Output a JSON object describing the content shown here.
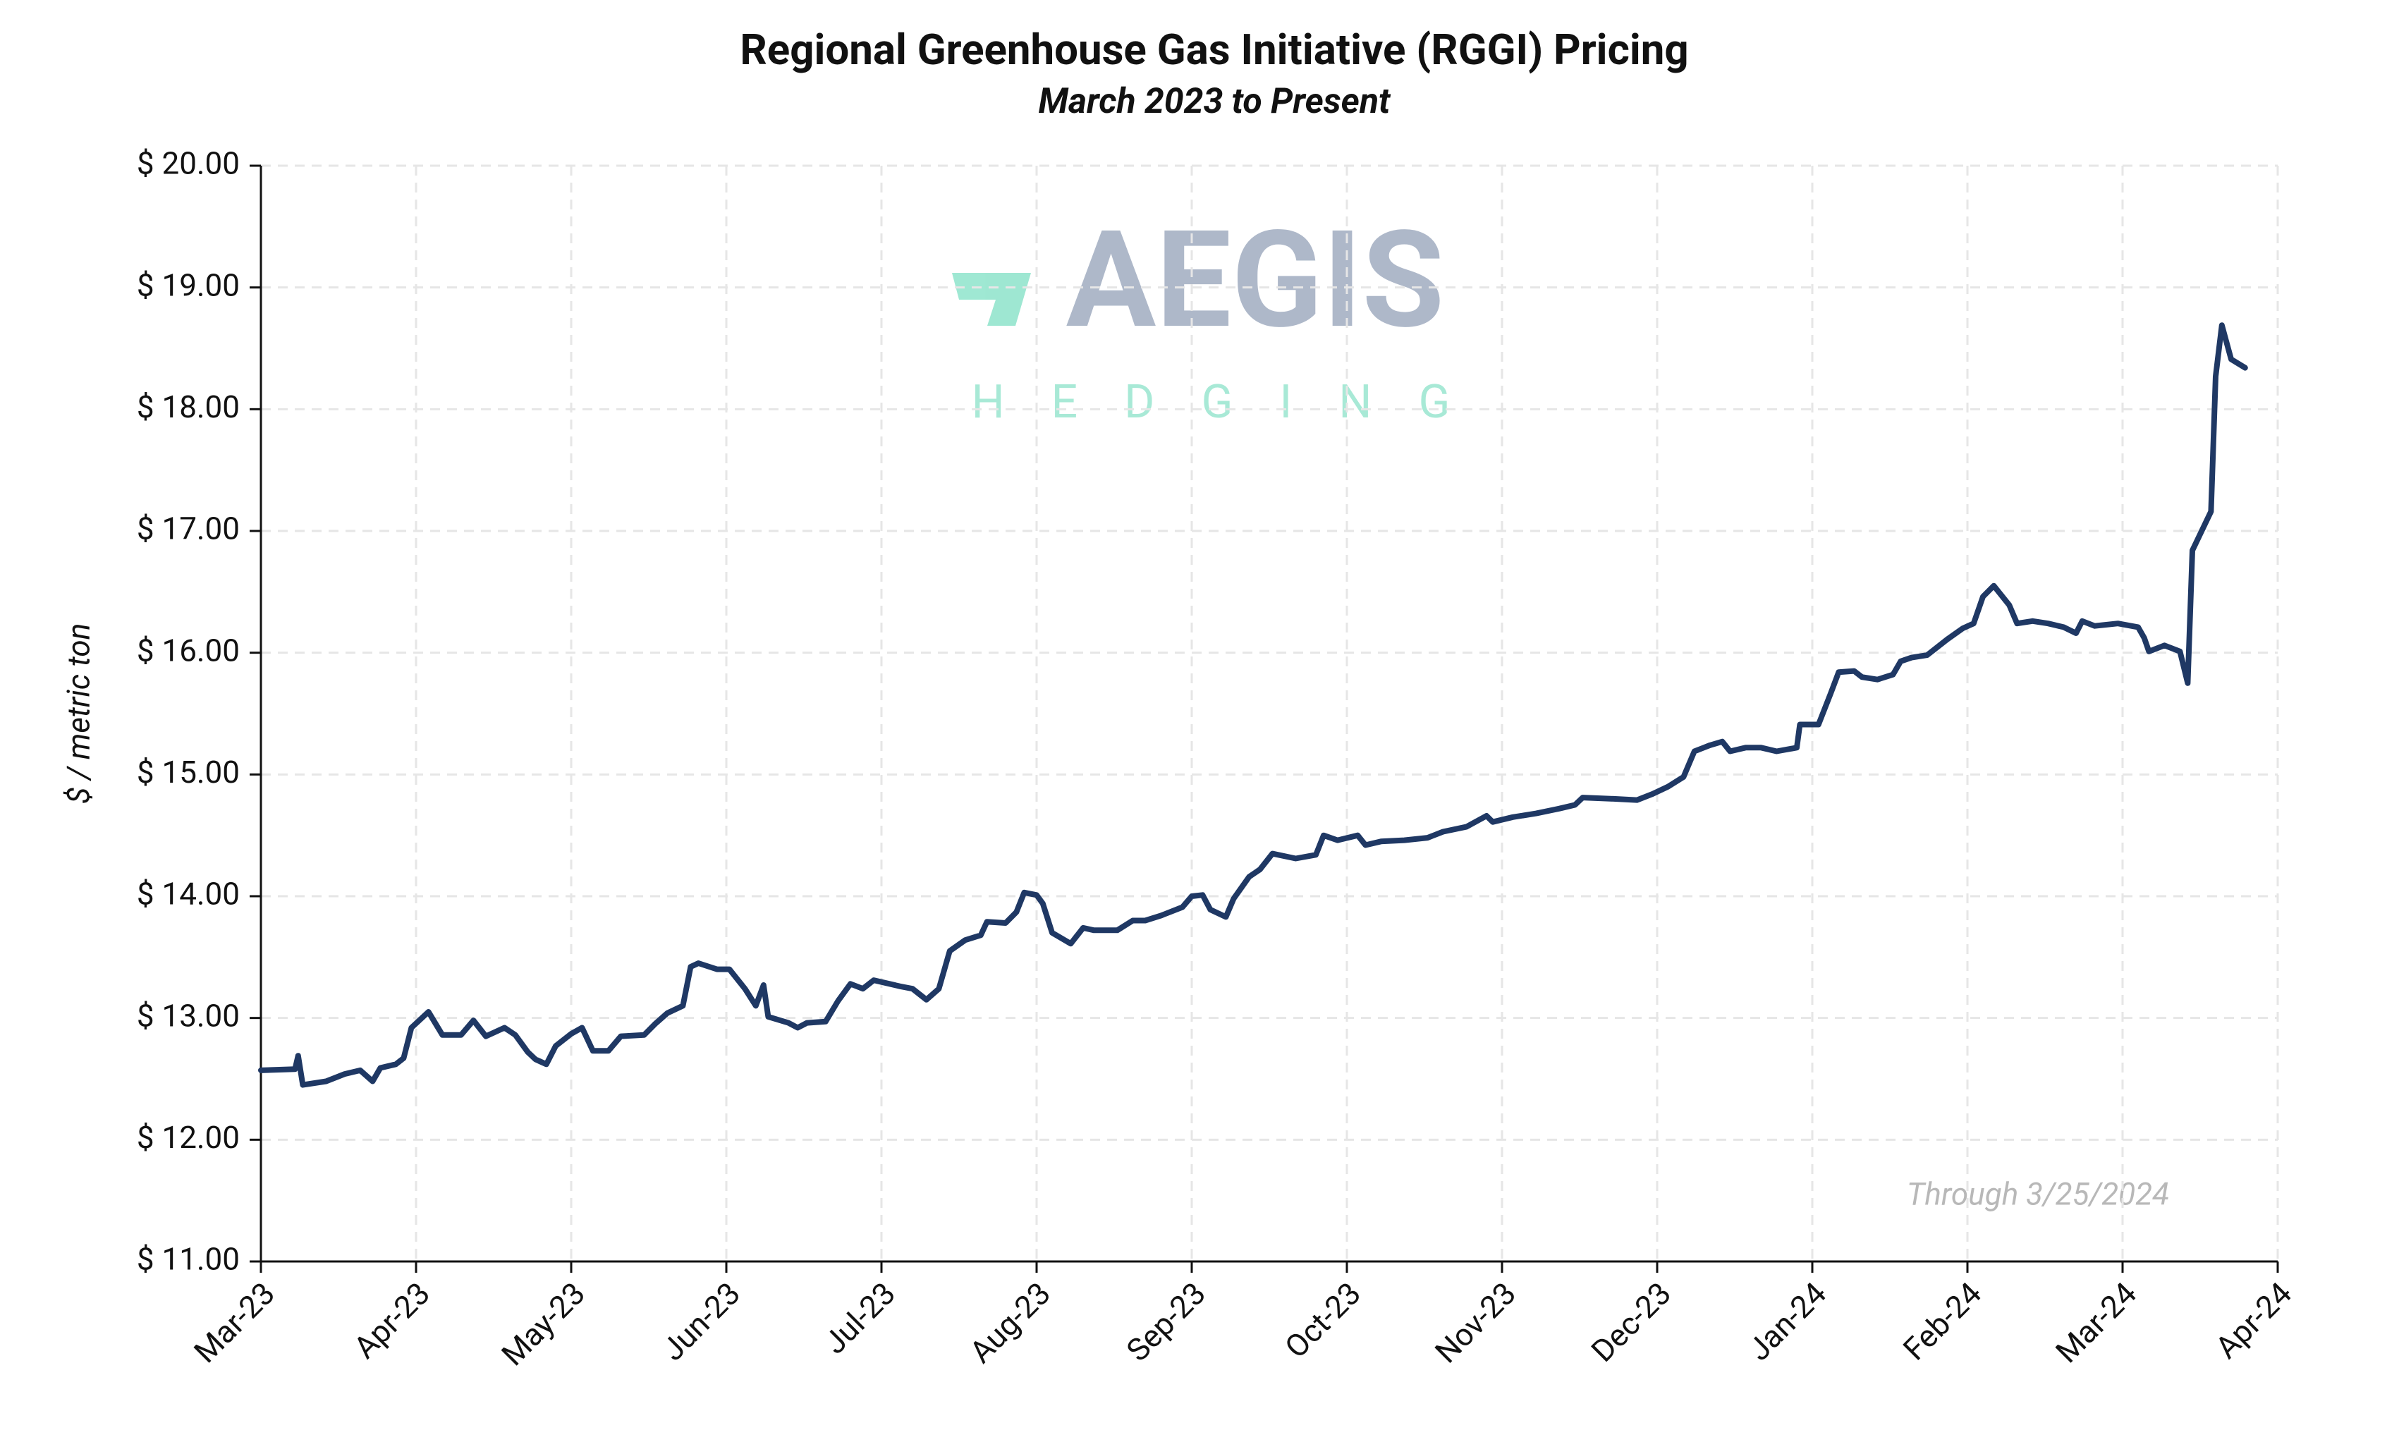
{
  "chart_data": {
    "type": "line",
    "title": "Regional Greenhouse Gas Initiative (RGGI) Pricing",
    "subtitle": "March 2023 to Present",
    "y_label": "$ / metric ton",
    "annotation": "Through 3/25/2024",
    "watermark": {
      "title": "AEGIS",
      "subtitle": "HEDGING"
    },
    "grid": true,
    "xlim": [
      0,
      13
    ],
    "xticks": [
      {
        "value": 0,
        "label": "Mar-23"
      },
      {
        "value": 1,
        "label": "Apr-23"
      },
      {
        "value": 2,
        "label": "May-23"
      },
      {
        "value": 3,
        "label": "Jun-23"
      },
      {
        "value": 4,
        "label": "Jul-23"
      },
      {
        "value": 5,
        "label": "Aug-23"
      },
      {
        "value": 6,
        "label": "Sep-23"
      },
      {
        "value": 7,
        "label": "Oct-23"
      },
      {
        "value": 8,
        "label": "Nov-23"
      },
      {
        "value": 9,
        "label": "Dec-23"
      },
      {
        "value": 10,
        "label": "Jan-24"
      },
      {
        "value": 11,
        "label": "Feb-24"
      },
      {
        "value": 12,
        "label": "Mar-24"
      },
      {
        "value": 13,
        "label": "Apr-24"
      }
    ],
    "ylim": [
      11,
      20
    ],
    "yticks": [
      {
        "value": 11,
        "label": "$ 11.00"
      },
      {
        "value": 12,
        "label": "$ 12.00"
      },
      {
        "value": 13,
        "label": "$ 13.00"
      },
      {
        "value": 14,
        "label": "$ 14.00"
      },
      {
        "value": 15,
        "label": "$ 15.00"
      },
      {
        "value": 16,
        "label": "$ 16.00"
      },
      {
        "value": 17,
        "label": "$ 17.00"
      },
      {
        "value": 18,
        "label": "$ 18.00"
      },
      {
        "value": 19,
        "label": "$ 19.00"
      },
      {
        "value": 20,
        "label": "$ 20.00"
      }
    ],
    "x": [
      0,
      0.22,
      0.24,
      0.27,
      0.42,
      0.54,
      0.64,
      0.72,
      0.77,
      0.87,
      0.92,
      0.97,
      1.08,
      1.17,
      1.29,
      1.37,
      1.45,
      1.57,
      1.64,
      1.72,
      1.77,
      1.84,
      1.9,
      2.0,
      2.07,
      2.14,
      2.24,
      2.32,
      2.47,
      2.54,
      2.62,
      2.72,
      2.77,
      2.82,
      2.94,
      3.02,
      3.12,
      3.19,
      3.24,
      3.27,
      3.4,
      3.46,
      3.52,
      3.64,
      3.72,
      3.8,
      3.88,
      3.95,
      4.12,
      4.2,
      4.29,
      4.37,
      4.44,
      4.54,
      4.64,
      4.68,
      4.8,
      4.87,
      4.92,
      5.0,
      5.04,
      5.1,
      5.22,
      5.3,
      5.37,
      5.52,
      5.62,
      5.7,
      5.8,
      5.94,
      6.0,
      6.07,
      6.12,
      6.22,
      6.27,
      6.37,
      6.44,
      6.52,
      6.67,
      6.8,
      6.85,
      6.94,
      7.07,
      7.12,
      7.22,
      7.37,
      7.52,
      7.62,
      7.77,
      7.9,
      7.94,
      8.07,
      8.22,
      8.37,
      8.47,
      8.52,
      8.72,
      8.87,
      8.97,
      9.07,
      9.17,
      9.24,
      9.34,
      9.42,
      9.47,
      9.57,
      9.67,
      9.77,
      9.9,
      9.92,
      10.04,
      10.12,
      10.17,
      10.27,
      10.32,
      10.42,
      10.52,
      10.57,
      10.64,
      10.74,
      10.87,
      10.97,
      11.04,
      11.1,
      11.17,
      11.27,
      11.32,
      11.42,
      11.52,
      11.62,
      11.7,
      11.74,
      11.82,
      11.97,
      12.1,
      12.14,
      12.17,
      12.27,
      12.37,
      12.42,
      12.45,
      12.57,
      12.6,
      12.64,
      12.7,
      12.79
    ],
    "series": [
      {
        "name": "RGGI",
        "color": "#1f3864",
        "values": [
          12.57,
          12.58,
          12.69,
          12.45,
          12.48,
          12.54,
          12.57,
          12.48,
          12.59,
          12.62,
          12.67,
          12.92,
          13.05,
          12.86,
          12.86,
          12.98,
          12.85,
          12.92,
          12.86,
          12.72,
          12.66,
          12.62,
          12.77,
          12.87,
          12.92,
          12.73,
          12.73,
          12.85,
          12.86,
          12.95,
          13.04,
          13.1,
          13.42,
          13.45,
          13.4,
          13.4,
          13.24,
          13.1,
          13.27,
          13.01,
          12.96,
          12.92,
          12.96,
          12.97,
          13.14,
          13.28,
          13.24,
          13.31,
          13.26,
          13.24,
          13.15,
          13.24,
          13.55,
          13.64,
          13.68,
          13.79,
          13.78,
          13.87,
          14.03,
          14.01,
          13.94,
          13.7,
          13.61,
          13.74,
          13.72,
          13.72,
          13.8,
          13.8,
          13.84,
          13.91,
          14.0,
          14.01,
          13.89,
          13.83,
          13.98,
          14.16,
          14.22,
          14.35,
          14.31,
          14.34,
          14.5,
          14.46,
          14.5,
          14.42,
          14.45,
          14.46,
          14.48,
          14.53,
          14.57,
          14.66,
          14.61,
          14.65,
          14.68,
          14.72,
          14.75,
          14.81,
          14.8,
          14.79,
          14.84,
          14.9,
          14.98,
          15.19,
          15.24,
          15.27,
          15.19,
          15.22,
          15.22,
          15.19,
          15.22,
          15.41,
          15.41,
          15.67,
          15.84,
          15.85,
          15.8,
          15.78,
          15.82,
          15.93,
          15.96,
          15.98,
          16.11,
          16.2,
          16.24,
          16.46,
          16.55,
          16.39,
          16.24,
          16.26,
          16.24,
          16.21,
          16.16,
          16.26,
          16.22,
          16.24,
          16.21,
          16.12,
          16.01,
          16.06,
          16.01,
          15.75,
          16.84,
          17.16,
          18.27,
          18.69,
          18.41,
          18.34
        ]
      }
    ]
  }
}
